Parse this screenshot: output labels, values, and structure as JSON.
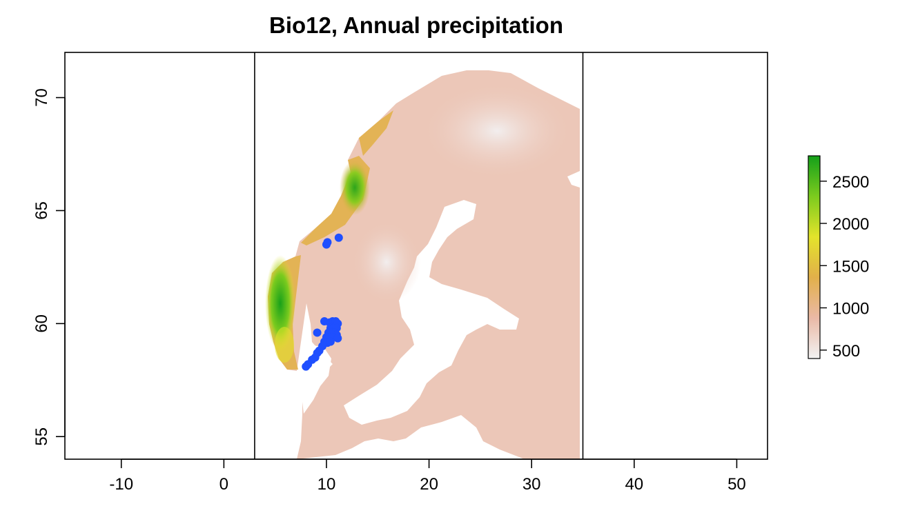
{
  "title": "Bio12, Annual precipitation",
  "map": {
    "type": "raster-map",
    "xlim": [
      -15.5,
      53
    ],
    "ylim": [
      54,
      72
    ],
    "x_ticks": [
      -10,
      0,
      10,
      20,
      30,
      40,
      50
    ],
    "y_ticks": [
      55,
      60,
      65,
      70
    ],
    "extent_lines_x": [
      3,
      35
    ],
    "legend": {
      "position": "right",
      "ticks": [
        500,
        1000,
        1500,
        2000,
        2500
      ],
      "range": [
        400,
        2800
      ],
      "colors": [
        "#f2f2f2",
        "#eab9a6",
        "#e2b04a",
        "#e3e32b",
        "#7ccb1e",
        "#14a01a"
      ]
    },
    "region_colors": {
      "low": "#f0f0f0",
      "typical": "#ecc7b8",
      "mid": "#eab9a6",
      "high": "#e2b04a",
      "veryhigh": "#e3e32b",
      "max": "#14a01a"
    },
    "points_color": "#1f4fff",
    "points": [
      [
        10.0,
        63.5
      ],
      [
        10.1,
        63.6
      ],
      [
        11.2,
        63.8
      ],
      [
        9.8,
        60.1
      ],
      [
        10.3,
        60.05
      ],
      [
        10.6,
        60.1
      ],
      [
        10.9,
        60.1
      ],
      [
        11.1,
        60.0
      ],
      [
        10.4,
        59.8
      ],
      [
        10.7,
        59.8
      ],
      [
        11.0,
        59.8
      ],
      [
        10.2,
        59.6
      ],
      [
        10.5,
        59.6
      ],
      [
        10.8,
        59.6
      ],
      [
        11.0,
        59.5
      ],
      [
        9.1,
        59.6
      ],
      [
        10.0,
        59.4
      ],
      [
        10.3,
        59.4
      ],
      [
        10.6,
        59.4
      ],
      [
        11.1,
        59.35
      ],
      [
        9.8,
        59.2
      ],
      [
        10.1,
        59.15
      ],
      [
        10.4,
        59.2
      ],
      [
        9.6,
        59.0
      ],
      [
        9.3,
        58.8
      ],
      [
        9.1,
        58.7
      ],
      [
        8.9,
        58.5
      ],
      [
        8.6,
        58.4
      ],
      [
        8.2,
        58.2
      ],
      [
        8.0,
        58.1
      ]
    ]
  }
}
